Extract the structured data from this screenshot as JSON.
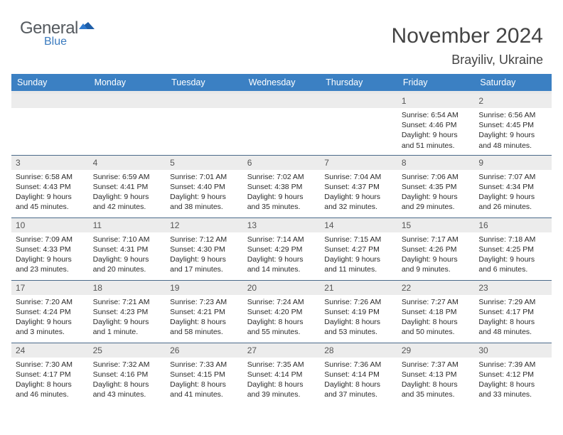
{
  "brand": {
    "name": "General",
    "sub": "Blue"
  },
  "title": {
    "month": "November 2024",
    "location": "Brayiliv, Ukraine"
  },
  "colors": {
    "header_bg": "#3b80c3",
    "header_text": "#ffffff",
    "daynum_bg": "#ececec",
    "daynum_text": "#555555",
    "body_text": "#2a2a2a",
    "row_border": "#4a6a8a",
    "brand_gray": "#555a5f",
    "brand_blue": "#3b7bbf"
  },
  "weekdays": [
    "Sunday",
    "Monday",
    "Tuesday",
    "Wednesday",
    "Thursday",
    "Friday",
    "Saturday"
  ],
  "weeks": [
    [
      null,
      null,
      null,
      null,
      null,
      {
        "n": "1",
        "sunrise": "Sunrise: 6:54 AM",
        "sunset": "Sunset: 4:46 PM",
        "day1": "Daylight: 9 hours",
        "day2": "and 51 minutes."
      },
      {
        "n": "2",
        "sunrise": "Sunrise: 6:56 AM",
        "sunset": "Sunset: 4:45 PM",
        "day1": "Daylight: 9 hours",
        "day2": "and 48 minutes."
      }
    ],
    [
      {
        "n": "3",
        "sunrise": "Sunrise: 6:58 AM",
        "sunset": "Sunset: 4:43 PM",
        "day1": "Daylight: 9 hours",
        "day2": "and 45 minutes."
      },
      {
        "n": "4",
        "sunrise": "Sunrise: 6:59 AM",
        "sunset": "Sunset: 4:41 PM",
        "day1": "Daylight: 9 hours",
        "day2": "and 42 minutes."
      },
      {
        "n": "5",
        "sunrise": "Sunrise: 7:01 AM",
        "sunset": "Sunset: 4:40 PM",
        "day1": "Daylight: 9 hours",
        "day2": "and 38 minutes."
      },
      {
        "n": "6",
        "sunrise": "Sunrise: 7:02 AM",
        "sunset": "Sunset: 4:38 PM",
        "day1": "Daylight: 9 hours",
        "day2": "and 35 minutes."
      },
      {
        "n": "7",
        "sunrise": "Sunrise: 7:04 AM",
        "sunset": "Sunset: 4:37 PM",
        "day1": "Daylight: 9 hours",
        "day2": "and 32 minutes."
      },
      {
        "n": "8",
        "sunrise": "Sunrise: 7:06 AM",
        "sunset": "Sunset: 4:35 PM",
        "day1": "Daylight: 9 hours",
        "day2": "and 29 minutes."
      },
      {
        "n": "9",
        "sunrise": "Sunrise: 7:07 AM",
        "sunset": "Sunset: 4:34 PM",
        "day1": "Daylight: 9 hours",
        "day2": "and 26 minutes."
      }
    ],
    [
      {
        "n": "10",
        "sunrise": "Sunrise: 7:09 AM",
        "sunset": "Sunset: 4:33 PM",
        "day1": "Daylight: 9 hours",
        "day2": "and 23 minutes."
      },
      {
        "n": "11",
        "sunrise": "Sunrise: 7:10 AM",
        "sunset": "Sunset: 4:31 PM",
        "day1": "Daylight: 9 hours",
        "day2": "and 20 minutes."
      },
      {
        "n": "12",
        "sunrise": "Sunrise: 7:12 AM",
        "sunset": "Sunset: 4:30 PM",
        "day1": "Daylight: 9 hours",
        "day2": "and 17 minutes."
      },
      {
        "n": "13",
        "sunrise": "Sunrise: 7:14 AM",
        "sunset": "Sunset: 4:29 PM",
        "day1": "Daylight: 9 hours",
        "day2": "and 14 minutes."
      },
      {
        "n": "14",
        "sunrise": "Sunrise: 7:15 AM",
        "sunset": "Sunset: 4:27 PM",
        "day1": "Daylight: 9 hours",
        "day2": "and 11 minutes."
      },
      {
        "n": "15",
        "sunrise": "Sunrise: 7:17 AM",
        "sunset": "Sunset: 4:26 PM",
        "day1": "Daylight: 9 hours",
        "day2": "and 9 minutes."
      },
      {
        "n": "16",
        "sunrise": "Sunrise: 7:18 AM",
        "sunset": "Sunset: 4:25 PM",
        "day1": "Daylight: 9 hours",
        "day2": "and 6 minutes."
      }
    ],
    [
      {
        "n": "17",
        "sunrise": "Sunrise: 7:20 AM",
        "sunset": "Sunset: 4:24 PM",
        "day1": "Daylight: 9 hours",
        "day2": "and 3 minutes."
      },
      {
        "n": "18",
        "sunrise": "Sunrise: 7:21 AM",
        "sunset": "Sunset: 4:23 PM",
        "day1": "Daylight: 9 hours",
        "day2": "and 1 minute."
      },
      {
        "n": "19",
        "sunrise": "Sunrise: 7:23 AM",
        "sunset": "Sunset: 4:21 PM",
        "day1": "Daylight: 8 hours",
        "day2": "and 58 minutes."
      },
      {
        "n": "20",
        "sunrise": "Sunrise: 7:24 AM",
        "sunset": "Sunset: 4:20 PM",
        "day1": "Daylight: 8 hours",
        "day2": "and 55 minutes."
      },
      {
        "n": "21",
        "sunrise": "Sunrise: 7:26 AM",
        "sunset": "Sunset: 4:19 PM",
        "day1": "Daylight: 8 hours",
        "day2": "and 53 minutes."
      },
      {
        "n": "22",
        "sunrise": "Sunrise: 7:27 AM",
        "sunset": "Sunset: 4:18 PM",
        "day1": "Daylight: 8 hours",
        "day2": "and 50 minutes."
      },
      {
        "n": "23",
        "sunrise": "Sunrise: 7:29 AM",
        "sunset": "Sunset: 4:17 PM",
        "day1": "Daylight: 8 hours",
        "day2": "and 48 minutes."
      }
    ],
    [
      {
        "n": "24",
        "sunrise": "Sunrise: 7:30 AM",
        "sunset": "Sunset: 4:17 PM",
        "day1": "Daylight: 8 hours",
        "day2": "and 46 minutes."
      },
      {
        "n": "25",
        "sunrise": "Sunrise: 7:32 AM",
        "sunset": "Sunset: 4:16 PM",
        "day1": "Daylight: 8 hours",
        "day2": "and 43 minutes."
      },
      {
        "n": "26",
        "sunrise": "Sunrise: 7:33 AM",
        "sunset": "Sunset: 4:15 PM",
        "day1": "Daylight: 8 hours",
        "day2": "and 41 minutes."
      },
      {
        "n": "27",
        "sunrise": "Sunrise: 7:35 AM",
        "sunset": "Sunset: 4:14 PM",
        "day1": "Daylight: 8 hours",
        "day2": "and 39 minutes."
      },
      {
        "n": "28",
        "sunrise": "Sunrise: 7:36 AM",
        "sunset": "Sunset: 4:14 PM",
        "day1": "Daylight: 8 hours",
        "day2": "and 37 minutes."
      },
      {
        "n": "29",
        "sunrise": "Sunrise: 7:37 AM",
        "sunset": "Sunset: 4:13 PM",
        "day1": "Daylight: 8 hours",
        "day2": "and 35 minutes."
      },
      {
        "n": "30",
        "sunrise": "Sunrise: 7:39 AM",
        "sunset": "Sunset: 4:12 PM",
        "day1": "Daylight: 8 hours",
        "day2": "and 33 minutes."
      }
    ]
  ]
}
